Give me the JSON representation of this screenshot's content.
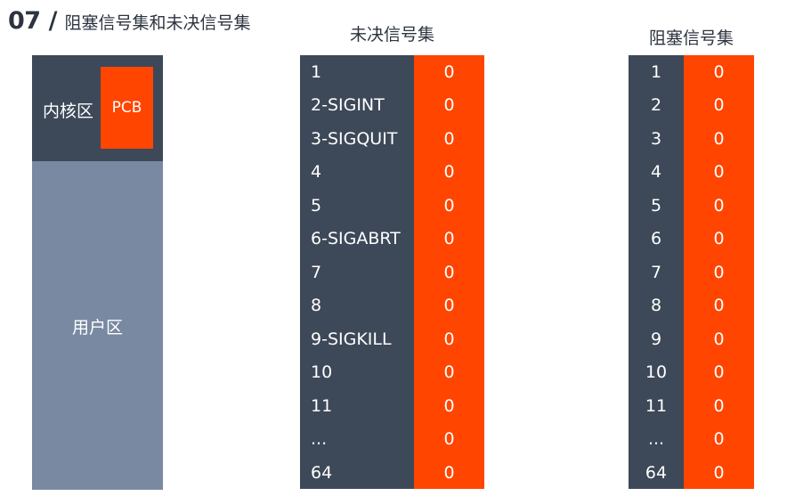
{
  "header": {
    "number": "07",
    "slash": "/",
    "title": "阻塞信号集和未决信号集"
  },
  "memory": {
    "kernel_label": "内核区",
    "pcb_label": "PCB",
    "user_label": "用户区"
  },
  "pending": {
    "title": "未决信号集",
    "rows": [
      {
        "name": "1",
        "value": "0"
      },
      {
        "name": "2-SIGINT",
        "value": "0"
      },
      {
        "name": "3-SIGQUIT",
        "value": "0"
      },
      {
        "name": "4",
        "value": "0"
      },
      {
        "name": "5",
        "value": "0"
      },
      {
        "name": "6-SIGABRT",
        "value": "0"
      },
      {
        "name": "7",
        "value": "0"
      },
      {
        "name": "8",
        "value": "0"
      },
      {
        "name": "9-SIGKILL",
        "value": "0"
      },
      {
        "name": "10",
        "value": "0"
      },
      {
        "name": "11",
        "value": "0"
      },
      {
        "name": "...",
        "value": "0"
      },
      {
        "name": "64",
        "value": "0"
      }
    ]
  },
  "blocked": {
    "title": "阻塞信号集",
    "rows": [
      {
        "name": "1",
        "value": "0"
      },
      {
        "name": "2",
        "value": "0"
      },
      {
        "name": "3",
        "value": "0"
      },
      {
        "name": "4",
        "value": "0"
      },
      {
        "name": "5",
        "value": "0"
      },
      {
        "name": "6",
        "value": "0"
      },
      {
        "name": "7",
        "value": "0"
      },
      {
        "name": "8",
        "value": "0"
      },
      {
        "name": "9",
        "value": "0"
      },
      {
        "name": "10",
        "value": "0"
      },
      {
        "name": "11",
        "value": "0"
      },
      {
        "name": "...",
        "value": "0"
      },
      {
        "name": "64",
        "value": "0"
      }
    ]
  },
  "colors": {
    "dark_slate": "#3d4858",
    "orange_red": "#ff4500",
    "user_area": "#7989a1",
    "text_dark": "#2d3440"
  }
}
